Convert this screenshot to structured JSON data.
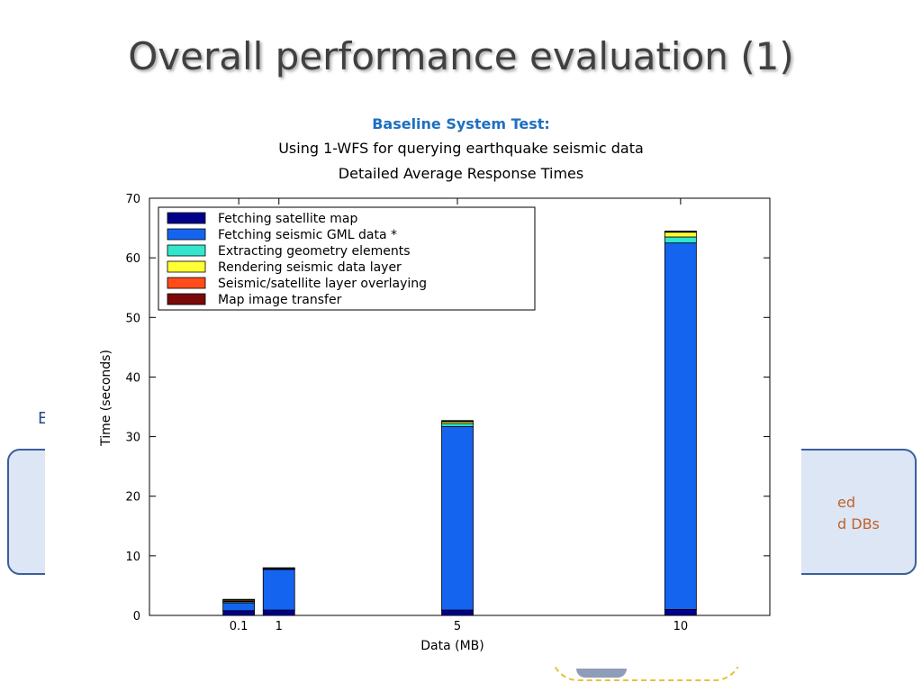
{
  "slide": {
    "title": "Overall performance evaluation (1)",
    "subtitle_line1": "Baseline System Test:",
    "subtitle_line2": "Using 1-WFS for querying earthquake seismic data",
    "subtitle_line3": "Detailed Average Response Times",
    "bg_fragment_left": "E",
    "bg_fragment_right_line1": "ed",
    "bg_fragment_right_line2": "d DBs"
  },
  "colors": {
    "title": "#404040",
    "subtitle_accent": "#1f6fc0",
    "box_fill": "#dce6f4",
    "box_border": "#3b5f9a",
    "right_text": "#c0622a"
  },
  "chart_data": {
    "type": "bar",
    "stacked": true,
    "categories": [
      "0.1",
      "1",
      "5",
      "10"
    ],
    "x_values": [
      0.1,
      1,
      5,
      10
    ],
    "xlabel": "Data (MB)",
    "ylabel": "Time (seconds)",
    "ylim": [
      0,
      70
    ],
    "yticks": [
      0,
      10,
      20,
      30,
      40,
      50,
      60,
      70
    ],
    "legend_position": "top-left",
    "grid": false,
    "series": [
      {
        "name": "Fetching satellite map",
        "color": "#00008b",
        "values": [
          0.8,
          0.9,
          0.9,
          1.0
        ]
      },
      {
        "name": "Fetching seismic GML data *",
        "color": "#1464f0",
        "values": [
          1.3,
          6.8,
          30.8,
          61.5
        ]
      },
      {
        "name": "Extracting geometry elements",
        "color": "#33e6cc",
        "values": [
          0.2,
          0.1,
          0.5,
          1.0
        ]
      },
      {
        "name": "Rendering seismic data layer",
        "color": "#ffff33",
        "values": [
          0.1,
          0.1,
          0.3,
          0.8
        ]
      },
      {
        "name": "Seismic/satellite layer overlaying",
        "color": "#ff4c1a",
        "values": [
          0.2,
          0.05,
          0.1,
          0.1
        ]
      },
      {
        "name": "Map image transfer",
        "color": "#7a0a0a",
        "values": [
          0.1,
          0.05,
          0.1,
          0.1
        ]
      }
    ]
  }
}
